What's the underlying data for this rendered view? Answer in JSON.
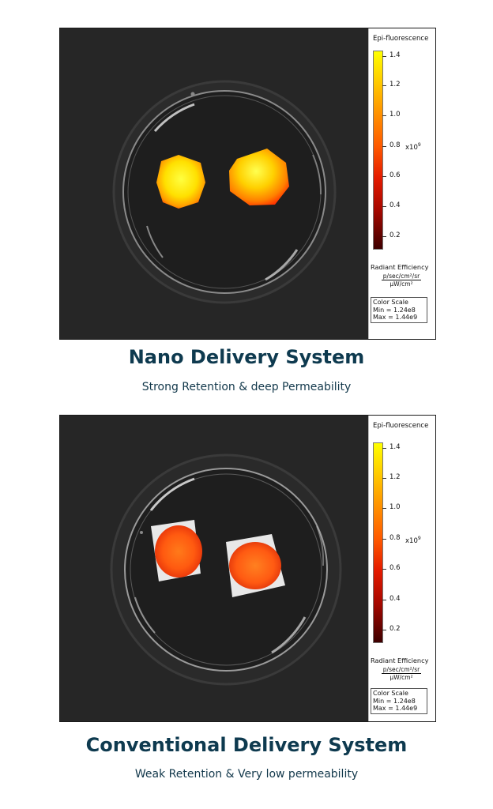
{
  "panel_a": {
    "legend": {
      "title": "Epi-fluorescence",
      "ticks": [
        "1.4",
        "1.2",
        "1.0",
        "0.8",
        "0.6",
        "0.4",
        "0.2"
      ],
      "exponent_base": "x10",
      "exponent": "9",
      "radiant_label": "Radiant Efficiency",
      "unit_numerator": "p/sec/cm²/sr",
      "unit_denominator": "μW/cm²",
      "scale_title": "Color Scale",
      "scale_min": "Min = 1.24e8",
      "scale_max": "Max = 1.44e9"
    }
  },
  "panel_b": {
    "legend": {
      "title": "Epi-fluorescence",
      "ticks": [
        "1.4",
        "1.2",
        "1.0",
        "0.8",
        "0.6",
        "0.4",
        "0.2"
      ],
      "exponent_base": "x10",
      "exponent": "9",
      "radiant_label": "Radiant Efficiency",
      "unit_numerator": "p/sec/cm²/sr",
      "unit_denominator": "μW/cm²",
      "scale_title": "Color Scale",
      "scale_min": "Min = 1.24e8",
      "scale_max": "Max = 1.44e9"
    }
  },
  "caption_a": {
    "title": "Nano Delivery System",
    "subtitle": "Strong Retention & deep Permeability"
  },
  "caption_b": {
    "title": "Conventional Delivery System",
    "subtitle": "Weak Retention & Very low permeability"
  },
  "colors": {
    "heading": "#0e3a4f",
    "background": "#262626"
  }
}
